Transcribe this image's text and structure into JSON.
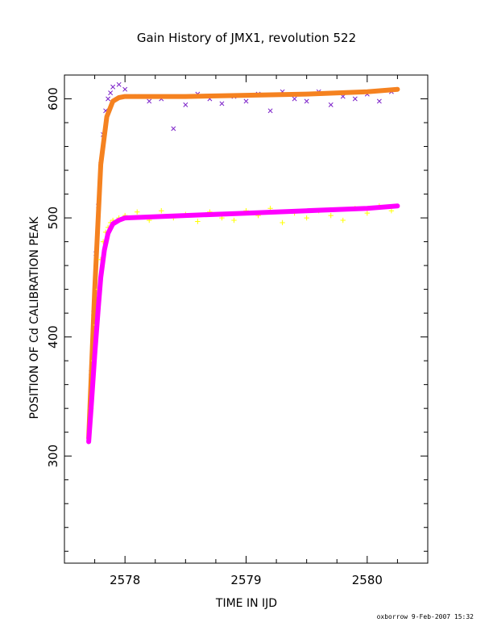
{
  "chart_data": {
    "type": "scatter",
    "title": "Gain History of JMX1, revolution 522",
    "xlabel": "TIME IN IJD",
    "ylabel": "POSITION OF Cd CALIBRATION PEAK",
    "xlim": [
      2577.5,
      2580.5
    ],
    "ylim": [
      210,
      620
    ],
    "xticks": [
      2578,
      2579,
      2580
    ],
    "yticks": [
      300,
      400,
      500,
      600
    ],
    "grid": false,
    "legend": "none",
    "series": [
      {
        "marker": "x",
        "color": "#7a1fc8",
        "kind": "scatter",
        "x": [
          2577.72,
          2577.74,
          2577.76,
          2577.78,
          2577.8,
          2577.82,
          2577.84,
          2577.86,
          2577.88,
          2577.9,
          2577.95,
          2578.0,
          2578.1,
          2578.2,
          2578.3,
          2578.4,
          2578.5,
          2578.6,
          2578.7,
          2578.8,
          2578.9,
          2579.0,
          2579.1,
          2579.2,
          2579.3,
          2579.4,
          2579.5,
          2579.6,
          2579.7,
          2579.8,
          2579.9,
          2580.0,
          2580.1,
          2580.2
        ],
        "y": [
          370,
          420,
          470,
          510,
          545,
          570,
          590,
          600,
          605,
          610,
          612,
          608,
          602,
          598,
          600,
          575,
          595,
          604,
          600,
          596,
          602,
          598,
          604,
          590,
          606,
          600,
          598,
          606,
          595,
          602,
          600,
          604,
          598,
          606
        ]
      },
      {
        "marker": "line",
        "color": "#f58220",
        "kind": "fit",
        "x": [
          2577.7,
          2577.75,
          2577.8,
          2577.85,
          2577.9,
          2577.95,
          2578.0,
          2578.5,
          2579.0,
          2579.5,
          2580.0,
          2580.25
        ],
        "y": [
          315,
          440,
          545,
          585,
          598,
          601,
          602,
          602,
          603,
          604,
          606,
          608
        ]
      },
      {
        "marker": "+",
        "color": "#ffff00",
        "kind": "scatter",
        "x": [
          2577.72,
          2577.74,
          2577.76,
          2577.78,
          2577.8,
          2577.82,
          2577.84,
          2577.86,
          2577.88,
          2577.9,
          2577.95,
          2578.0,
          2578.1,
          2578.2,
          2578.3,
          2578.4,
          2578.5,
          2578.6,
          2578.7,
          2578.8,
          2578.9,
          2579.0,
          2579.1,
          2579.2,
          2579.3,
          2579.4,
          2579.5,
          2579.6,
          2579.7,
          2579.8,
          2579.9,
          2580.0,
          2580.1,
          2580.2
        ],
        "y": [
          340,
          380,
          410,
          440,
          465,
          480,
          488,
          492,
          496,
          498,
          500,
          502,
          505,
          498,
          506,
          500,
          503,
          497,
          505,
          500,
          498,
          506,
          502,
          508,
          496,
          504,
          500,
          506,
          502,
          498,
          508,
          504,
          510,
          506
        ]
      },
      {
        "marker": "line",
        "color": "#ff00ff",
        "kind": "fit",
        "x": [
          2577.7,
          2577.72,
          2577.75,
          2577.78,
          2577.8,
          2577.83,
          2577.86,
          2577.9,
          2577.95,
          2578.0,
          2578.5,
          2579.0,
          2579.5,
          2580.0,
          2580.25
        ],
        "y": [
          312,
          340,
          385,
          425,
          450,
          473,
          487,
          495,
          498,
          500,
          502,
          504,
          506,
          508,
          510
        ]
      }
    ]
  },
  "footer": {
    "credit": "oxborrow  9-Feb-2007 15:32"
  }
}
